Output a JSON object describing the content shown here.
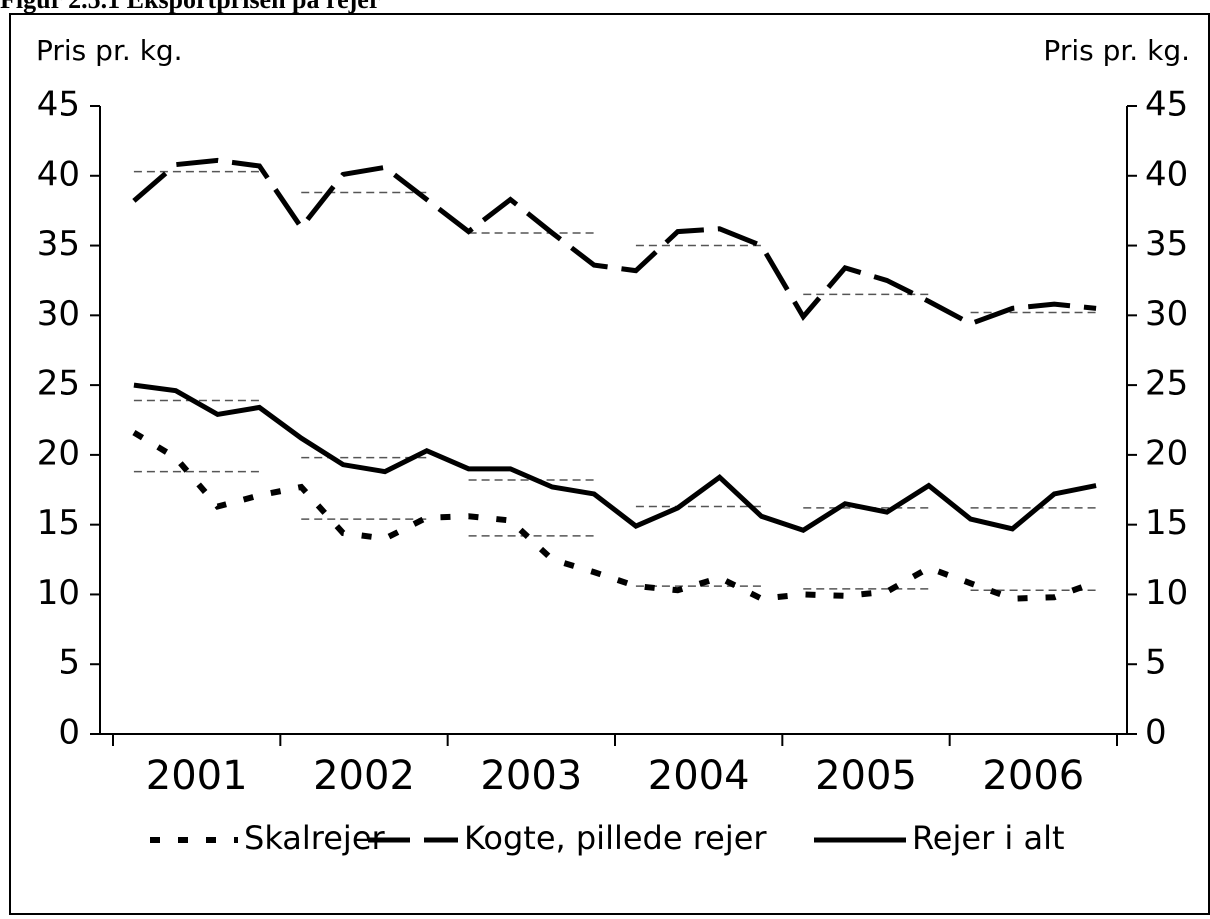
{
  "chart_data": {
    "type": "line",
    "title": "Figur 2.5.1 Eksportprisen på rejer",
    "y_label": "Pris pr. kg.",
    "y2_label": "Pris pr. kg.",
    "categories": [
      null,
      null,
      null,
      null,
      null,
      null,
      null,
      null,
      null,
      null,
      null,
      null,
      null,
      null,
      null,
      null,
      null,
      null,
      null,
      null,
      null,
      null,
      null,
      null
    ],
    "groups": [
      "2001",
      "2002",
      "2003",
      "2004",
      "2005",
      "2006"
    ],
    "ylim": [
      0,
      45
    ],
    "yticks": [
      0,
      5,
      10,
      15,
      20,
      25,
      30,
      35,
      40,
      45
    ],
    "y2lim": [
      0,
      45
    ],
    "y2ticks": [
      0,
      5,
      10,
      15,
      20,
      25,
      30,
      35,
      40,
      45
    ],
    "legend": "bottom",
    "series": [
      {
        "name": "Skalrejer",
        "color": "#000000",
        "line_style": "dotted",
        "values": [
          21.6,
          19.8,
          16.3,
          17.1,
          17.7,
          14.4,
          14.0,
          15.5,
          15.6,
          15.3,
          12.5,
          11.6,
          10.6,
          10.3,
          11.2,
          9.7,
          10.0,
          9.9,
          10.2,
          11.9,
          10.8,
          9.7,
          9.8,
          10.9
        ],
        "annual_values": [
          18.8,
          15.4,
          14.2,
          10.6,
          10.4,
          10.3
        ]
      },
      {
        "name": "Kogte, pillede rejer",
        "color": "#000000",
        "line_style": "dashed",
        "values": [
          38.2,
          40.8,
          41.1,
          40.7,
          36.3,
          40.1,
          40.6,
          38.3,
          36.0,
          38.3,
          35.9,
          33.6,
          33.2,
          36.0,
          36.2,
          35.0,
          29.9,
          33.4,
          32.5,
          31.0,
          29.4,
          30.5,
          30.8,
          30.5
        ],
        "annual_values": [
          40.3,
          38.8,
          35.9,
          35.0,
          31.5,
          30.2
        ]
      },
      {
        "name": "Rejer i alt",
        "color": "#000000",
        "line_style": "solid",
        "values": [
          25.0,
          24.6,
          22.9,
          23.4,
          21.2,
          19.3,
          18.8,
          20.3,
          19.0,
          19.0,
          17.7,
          17.2,
          14.9,
          16.2,
          18.4,
          15.6,
          14.6,
          16.5,
          15.9,
          17.8,
          15.4,
          14.7,
          17.2,
          17.8
        ],
        "annual_values": [
          23.9,
          19.8,
          18.2,
          16.3,
          16.2,
          16.2
        ]
      }
    ]
  }
}
